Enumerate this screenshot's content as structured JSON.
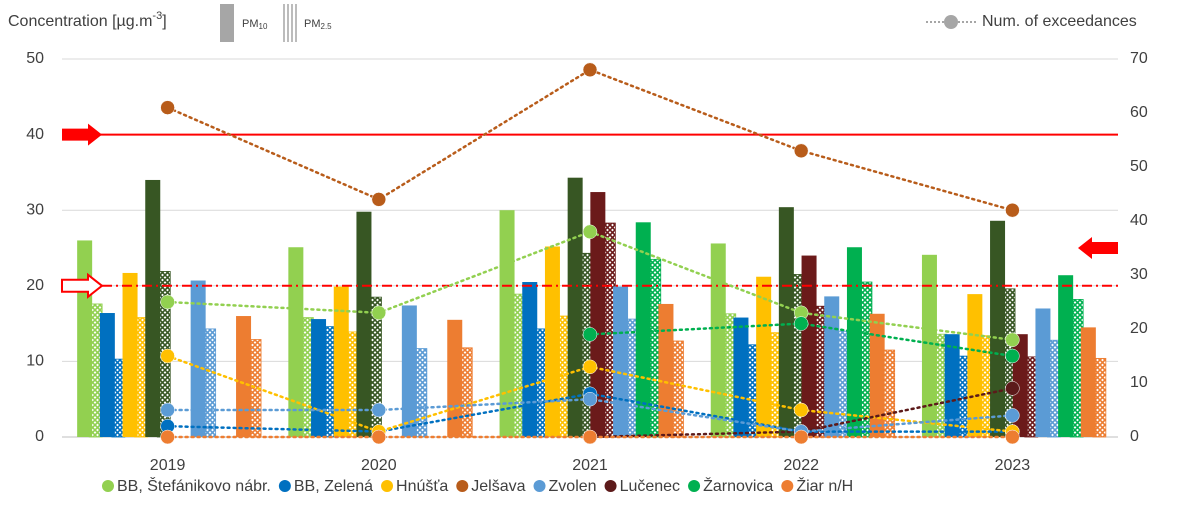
{
  "chart_data": {
    "type": "bar_line",
    "y_label": {
      "main": "Concentration [µg.m",
      "sup": "-3",
      "end": "]"
    },
    "pm10_label": {
      "main": "PM",
      "sub": "10"
    },
    "pm25_label": {
      "main": "PM",
      "sub": "2.5"
    },
    "y2_label": "Num. of exceedances",
    "categories": [
      "2019",
      "2020",
      "2021",
      "2022",
      "2023"
    ],
    "ylim": [
      0,
      50
    ],
    "yticks": [
      0,
      10,
      20,
      30,
      40,
      50
    ],
    "y2lim": [
      0,
      70
    ],
    "y2ticks": [
      0,
      10,
      20,
      30,
      40,
      50,
      60,
      70
    ],
    "limits": {
      "pm10": 40,
      "pm25": 20,
      "exceedances": 35
    },
    "limit_color": "#ff0000",
    "grid": true,
    "series": [
      {
        "name": "BB, Štefánikovo nábr.",
        "color": "#92d050",
        "bar_color": "#92d050",
        "pm10": [
          26.0,
          25.1,
          30.0,
          25.6,
          24.1
        ],
        "pm25": [
          17.6,
          15.8,
          18.9,
          16.3,
          13.6
        ],
        "exceedances": [
          25,
          23,
          38,
          23,
          18
        ]
      },
      {
        "name": "BB, Zelená",
        "color": "#0070c0",
        "bar_color": "#0070c0",
        "pm10": [
          16.4,
          15.6,
          20.5,
          15.8,
          13.6
        ],
        "pm25": [
          10.3,
          14.6,
          14.3,
          12.2,
          10.7
        ],
        "exceedances": [
          2,
          1,
          8,
          1,
          1
        ]
      },
      {
        "name": "Hnúšťa",
        "color": "#ffc000",
        "bar_color": "#ffc000",
        "pm10": [
          21.7,
          19.9,
          25.2,
          21.2,
          18.9
        ],
        "pm25": [
          15.8,
          13.9,
          16.0,
          13.8,
          13.4
        ],
        "exceedances": [
          15,
          1,
          13,
          5,
          1
        ]
      },
      {
        "name": "Jelšava",
        "color": "#b85c1a",
        "bar_color": "#375623",
        "pm10": [
          34.0,
          29.8,
          34.3,
          30.4,
          28.6
        ],
        "pm25": [
          21.9,
          18.5,
          24.3,
          21.5,
          19.6
        ],
        "exceedances": [
          61,
          44,
          68,
          53,
          42
        ]
      },
      {
        "name": "Lučenec",
        "color": "#5c1a1a",
        "bar_color": "#6b1a1a",
        "pm10": [
          null,
          null,
          32.4,
          24.0,
          13.6
        ],
        "pm25": [
          null,
          null,
          28.3,
          17.3,
          10.6
        ],
        "exceedances": [
          null,
          null,
          0,
          1,
          9
        ]
      },
      {
        "name": "Zvolen",
        "color": "#5b9bd5",
        "bar_color": "#5b9bd5",
        "pm10": [
          20.7,
          17.4,
          19.9,
          18.6,
          17.0
        ],
        "pm25": [
          14.3,
          11.7,
          15.6,
          14.0,
          12.8
        ],
        "exceedances": [
          5,
          5,
          7,
          1,
          4
        ]
      },
      {
        "name": "Žarnovica",
        "color": "#00b050",
        "bar_color": "#00b050",
        "pm10": [
          null,
          null,
          28.4,
          25.1,
          21.4
        ],
        "pm25": [
          null,
          null,
          23.5,
          20.5,
          18.2
        ],
        "exceedances": [
          null,
          null,
          19,
          21,
          15
        ]
      },
      {
        "name": "Žiar n/H",
        "color": "#ed7d31",
        "bar_color": "#ed7d31",
        "pm10": [
          16.0,
          15.5,
          17.6,
          16.3,
          14.5
        ],
        "pm25": [
          12.9,
          11.8,
          12.7,
          11.5,
          10.4
        ],
        "exceedances": [
          0,
          0,
          0,
          0,
          0
        ]
      }
    ],
    "legend_order": [
      0,
      1,
      2,
      3,
      5,
      4,
      6,
      7
    ]
  }
}
